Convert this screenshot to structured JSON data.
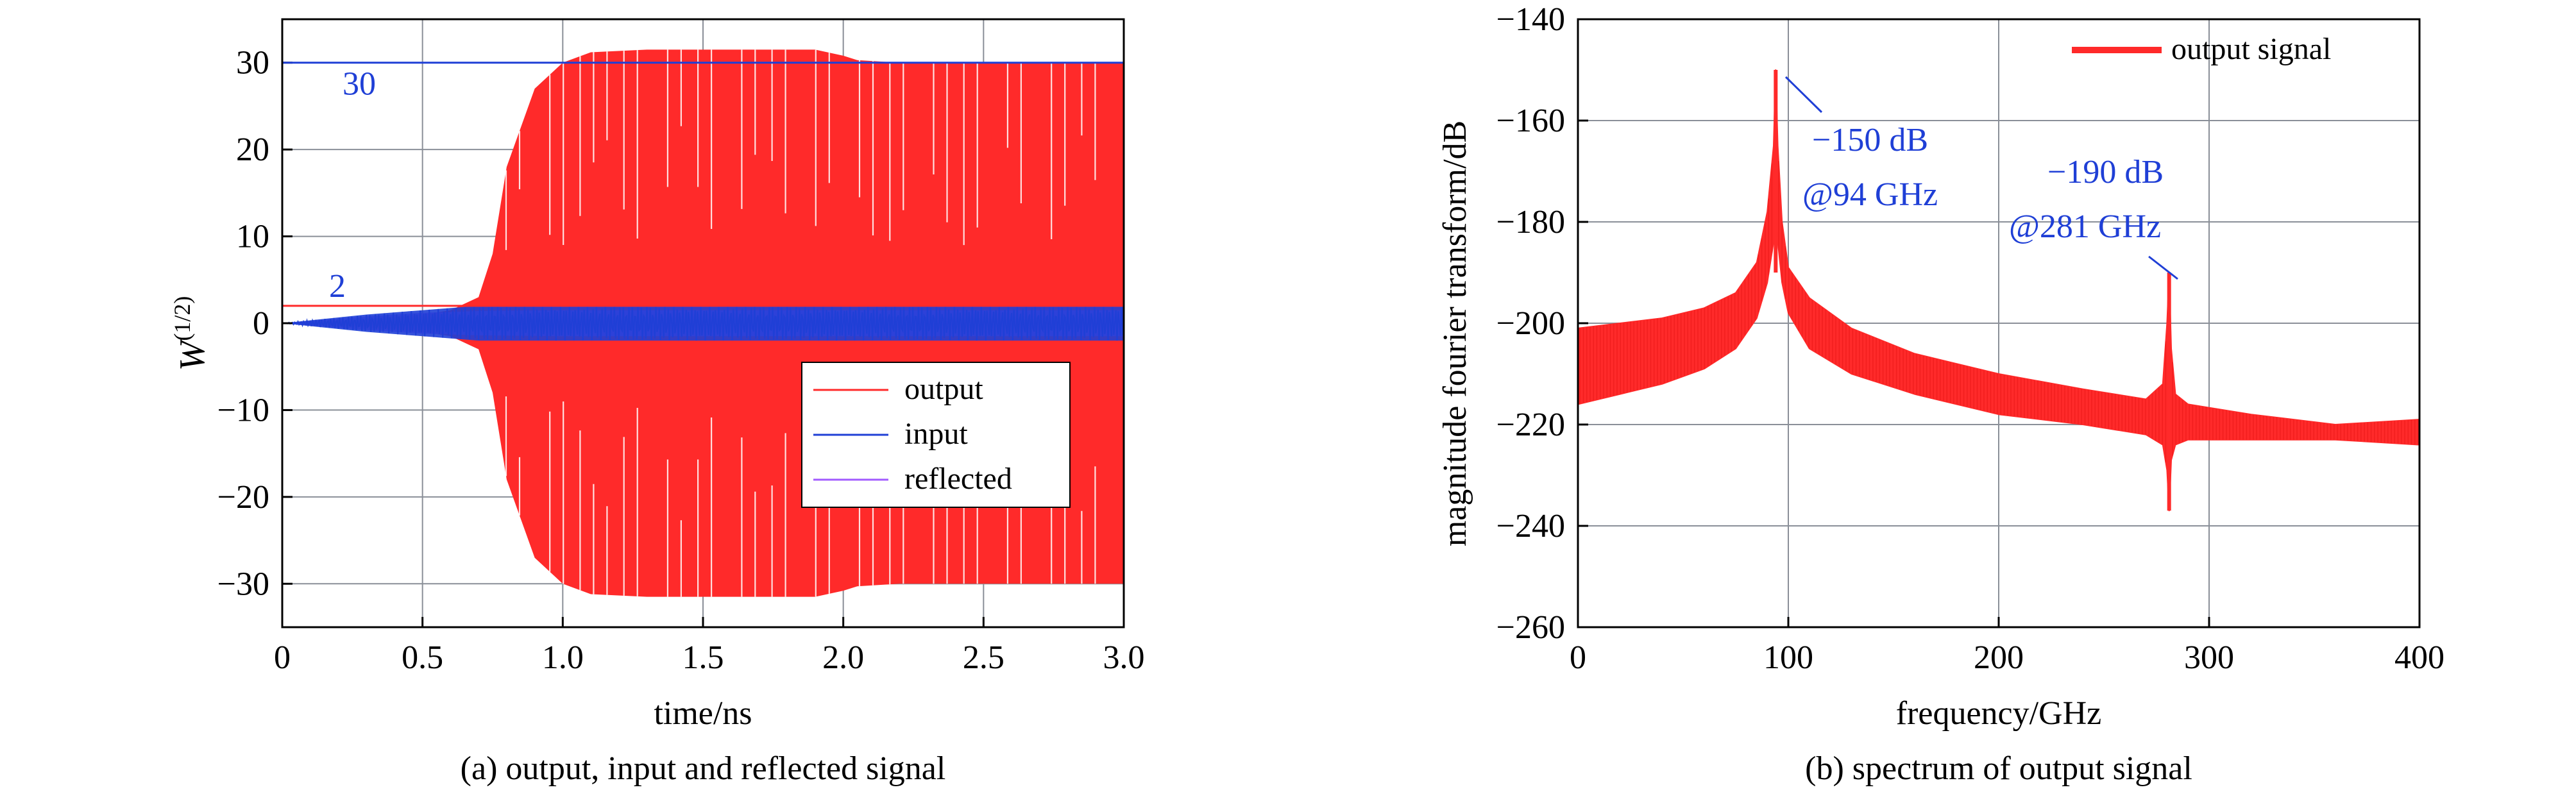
{
  "colors": {
    "output": "#ff2a2a",
    "input": "#1f3fd6",
    "reflected": "#a25bff",
    "annotation": "#1f3fd6",
    "grid": "#8a8f98",
    "axis": "#000000"
  },
  "chart_data": [
    {
      "type": "line",
      "panel": "a",
      "caption": "(a) output, input and reflected signal",
      "xlabel": "time/ns",
      "ylabel": "W",
      "ylabel_sup": "(1/2)",
      "xlim": [
        0,
        3.0
      ],
      "ylim": [
        -35,
        35
      ],
      "xticks": [
        0,
        0.5,
        1.0,
        1.5,
        2.0,
        2.5,
        3.0
      ],
      "xtick_labels": [
        "0",
        "0.5",
        "1.0",
        "1.5",
        "2.0",
        "2.5",
        "3.0"
      ],
      "yticks": [
        -30,
        -20,
        -10,
        0,
        10,
        20,
        30
      ],
      "ytick_labels": [
        "−30",
        "−20",
        "−10",
        "0",
        "10",
        "20",
        "30"
      ],
      "grid": true,
      "legend_position": "bottom-right",
      "series": [
        {
          "name": "output",
          "color": "#ff2a2a",
          "envelope": {
            "x": [
              0,
              0.3,
              0.5,
              0.6,
              0.7,
              0.75,
              0.8,
              0.9,
              1.0,
              1.1,
              1.3,
              1.5,
              1.7,
              1.9,
              2.0,
              2.05,
              2.2,
              2.5,
              2.8,
              3.0
            ],
            "upper": [
              0,
              0.5,
              1.0,
              1.5,
              3.0,
              8.0,
              18.0,
              27.0,
              30.0,
              31.2,
              31.5,
              31.5,
              31.5,
              31.5,
              30.8,
              30.3,
              30.0,
              30.0,
              30.0,
              30.0
            ],
            "lower": [
              0,
              -0.5,
              -1.0,
              -1.5,
              -3.0,
              -8.0,
              -18.0,
              -27.0,
              -30.0,
              -31.2,
              -31.5,
              -31.5,
              -31.5,
              -31.5,
              -30.8,
              -30.3,
              -30.0,
              -30.0,
              -30.0,
              -30.0
            ]
          }
        },
        {
          "name": "input",
          "color": "#1f3fd6",
          "envelope": {
            "x": [
              0,
              0.3,
              0.5,
              0.7,
              1.0,
              3.0
            ],
            "upper": [
              0,
              1.0,
              1.5,
              2.0,
              2.0,
              2.0
            ],
            "lower": [
              0,
              -1.0,
              -1.5,
              -2.0,
              -2.0,
              -2.0
            ]
          }
        },
        {
          "name": "reflected",
          "color": "#a25bff",
          "envelope": {
            "x": [
              0,
              0.3,
              0.5,
              0.7,
              1.0,
              3.0
            ],
            "upper": [
              0,
              0.8,
              1.2,
              1.4,
              1.5,
              1.5
            ],
            "lower": [
              0,
              -0.8,
              -1.2,
              -1.4,
              -1.5,
              -1.5
            ]
          }
        }
      ],
      "reference_lines": [
        {
          "y": 30,
          "label": "30",
          "color": "#1f3fd6"
        },
        {
          "y": 2,
          "label": "2",
          "color": "#ff2a2a"
        }
      ]
    },
    {
      "type": "line",
      "panel": "b",
      "caption": "(b) spectrum of output signal",
      "xlabel": "frequency/GHz",
      "ylabel": "magnitude fourier transform/dB",
      "xlim": [
        0,
        400
      ],
      "ylim": [
        -260,
        -140
      ],
      "xticks": [
        0,
        100,
        200,
        300,
        400
      ],
      "xtick_labels": [
        "0",
        "100",
        "200",
        "300",
        "400"
      ],
      "yticks": [
        -260,
        -240,
        -220,
        -200,
        -180,
        -160,
        -140
      ],
      "ytick_labels": [
        "−260",
        "−240",
        "−220",
        "−200",
        "−180",
        "−160",
        "−140"
      ],
      "grid": true,
      "legend_position": "top-right",
      "series": [
        {
          "name": "output signal",
          "color": "#ff2a2a",
          "upper": {
            "x": [
              0,
              20,
              40,
              60,
              75,
              85,
              90,
              93,
              94,
              95,
              97,
              100,
              110,
              130,
              160,
              200,
              240,
              270,
              278,
              280,
              281,
              282,
              284,
              290,
              320,
              360,
              400
            ],
            "y": [
              -201,
              -200,
              -199,
              -197,
              -194,
              -188,
              -178,
              -165,
              -150,
              -165,
              -180,
              -189,
              -195,
              -201,
              -206,
              -210,
              -213,
              -215,
              -212,
              -200,
              -190,
              -205,
              -214,
              -216,
              -218,
              -220,
              -219
            ]
          },
          "lower": {
            "x": [
              0,
              20,
              40,
              60,
              75,
              85,
              90,
              93,
              94,
              95,
              97,
              100,
              110,
              130,
              160,
              200,
              240,
              270,
              278,
              280,
              281,
              282,
              284,
              290,
              320,
              360,
              400
            ],
            "y": [
              -216,
              -214,
              -212,
              -209,
              -205,
              -199,
              -192,
              -184,
              -178,
              -184,
              -192,
              -198,
              -205,
              -210,
              -214,
              -218,
              -220,
              -222,
              -224,
              -229,
              -237,
              -227,
              -224,
              -223,
              -223,
              -223,
              -224
            ]
          }
        }
      ],
      "annotations": [
        {
          "lines": [
            "−150 dB",
            "@94 GHz"
          ],
          "x": 94,
          "y": -150
        },
        {
          "lines": [
            "−190 dB",
            "@281 GHz"
          ],
          "x": 281,
          "y": -190
        }
      ]
    }
  ]
}
